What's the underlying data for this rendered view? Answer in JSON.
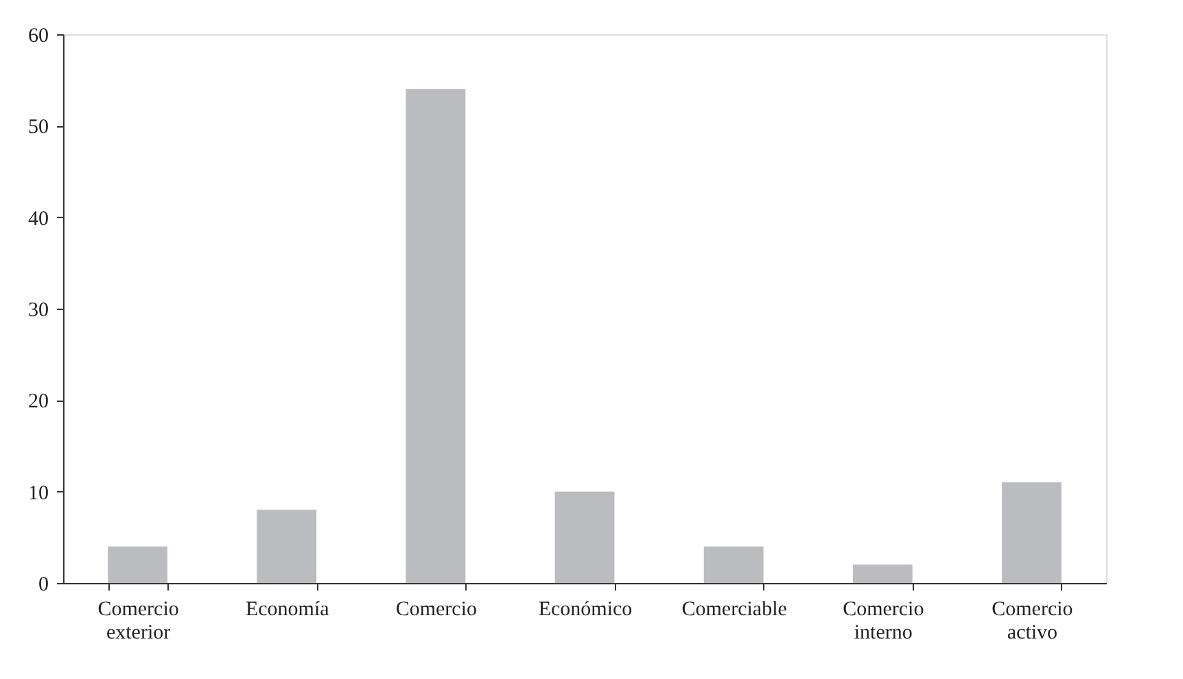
{
  "chart_data": {
    "type": "bar",
    "categories": [
      "Comercio exterior",
      "Economía",
      "Comercio",
      "Económico",
      "Comerciable",
      "Comercio interno",
      "Comercio activo"
    ],
    "values": [
      4,
      8,
      54,
      10,
      4,
      2,
      11
    ],
    "color": "#bbbcc0",
    "ylim": [
      0,
      60
    ],
    "yticks": [
      0,
      10,
      20,
      30,
      40,
      50,
      60
    ],
    "grid": false
  }
}
